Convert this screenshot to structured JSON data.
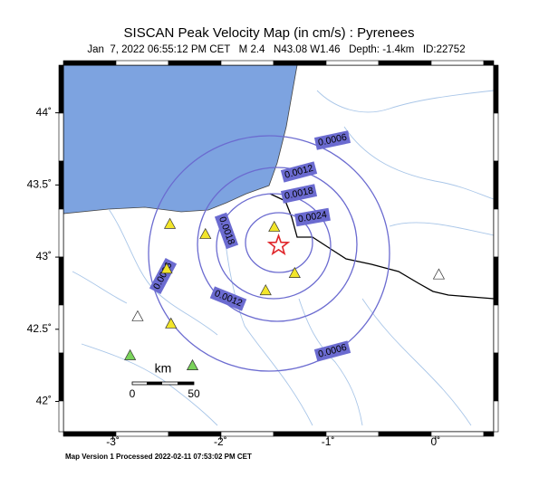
{
  "chart_data": {
    "type": "map",
    "title": "SISCAN Peak Velocity Map (in cm/s) : Pyrenees",
    "subtitle": "Jan  7, 2022 06:55:12 PM CET   M 2.4   N43.08 W1.46   Depth: -1.4km   ID:22752",
    "footer": "Map Version 1 Processed 2022-02-11 07:53:02 PM CET",
    "xlim": [
      -3.46,
      0.54
    ],
    "ylim": [
      41.79,
      44.33
    ],
    "xticks": [
      {
        "value": -3,
        "label": "-3˚"
      },
      {
        "value": -2,
        "label": "-2˚"
      },
      {
        "value": -1,
        "label": "-1˚"
      },
      {
        "value": 0,
        "label": "0˚"
      }
    ],
    "yticks": [
      {
        "value": 42,
        "label": "42˚"
      },
      {
        "value": 42.5,
        "label": "42.5˚"
      },
      {
        "value": 43,
        "label": "43˚"
      },
      {
        "value": 43.5,
        "label": "43.5˚"
      },
      {
        "value": 44,
        "label": "44˚"
      }
    ],
    "epicenter": {
      "lon": -1.46,
      "lat": 43.08,
      "color": "#e0262b"
    },
    "contours": [
      {
        "label": "0.0006"
      },
      {
        "label": "0.0012"
      },
      {
        "label": "0.0018"
      },
      {
        "label": "0.0024"
      }
    ],
    "contour_color": "#6b6bd0",
    "stations": [
      {
        "lon": -2.47,
        "lat": 43.23,
        "color": "#f2e52a"
      },
      {
        "lon": -2.14,
        "lat": 43.16,
        "color": "#f2e52a"
      },
      {
        "lon": -1.5,
        "lat": 43.21,
        "color": "#f2e52a"
      },
      {
        "lon": -1.31,
        "lat": 42.89,
        "color": "#f2e52a"
      },
      {
        "lon": -1.58,
        "lat": 42.77,
        "color": "#f2e52a"
      },
      {
        "lon": -2.46,
        "lat": 42.54,
        "color": "#f2e52a"
      },
      {
        "lon": -2.5,
        "lat": 42.92,
        "color": "#f2e52a"
      },
      {
        "lon": -2.84,
        "lat": 42.32,
        "color": "#7ad35a"
      },
      {
        "lon": -2.26,
        "lat": 42.25,
        "color": "#7ad35a"
      },
      {
        "lon": 0.03,
        "lat": 42.88,
        "color": "#ffffff"
      },
      {
        "lon": -2.77,
        "lat": 42.59,
        "color": "#ffffff"
      }
    ],
    "scale_bar": {
      "unit": "km",
      "start": "0",
      "end": "50"
    }
  }
}
